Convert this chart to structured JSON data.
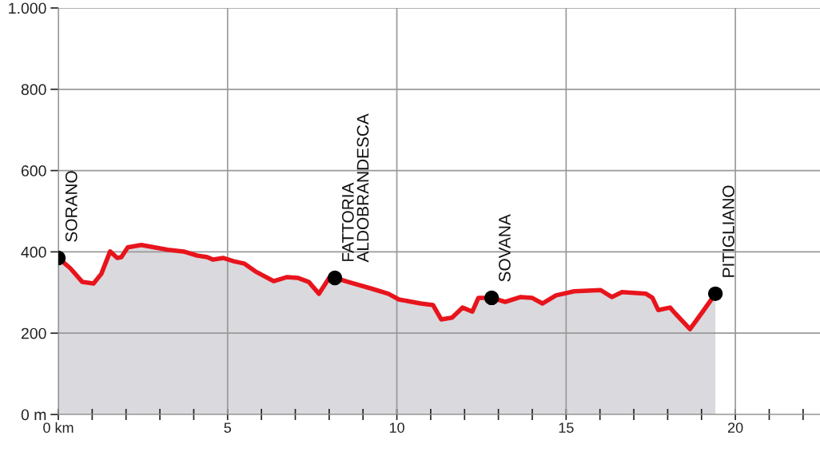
{
  "chart_data": {
    "type": "area",
    "series": [
      {
        "color": "#e8141c",
        "x": [
          0,
          0.35,
          0.71,
          1.04,
          1.27,
          1.53,
          1.74,
          1.86,
          2.05,
          2.45,
          3.23,
          3.7,
          4.1,
          4.4,
          4.57,
          4.88,
          5.18,
          5.5,
          5.82,
          6.36,
          6.76,
          7.07,
          7.4,
          7.7,
          8.0,
          8.17,
          8.57,
          9.28,
          9.75,
          10.06,
          10.7,
          11.07,
          11.31,
          11.63,
          11.94,
          12.23,
          12.41,
          12.8,
          13.2,
          13.66,
          13.99,
          14.3,
          14.7,
          15.24,
          16.02,
          16.35,
          16.65,
          17.36,
          17.55,
          17.72,
          18.07,
          18.23,
          18.66,
          19.01,
          19.41
        ],
        "values": [
          385,
          360,
          326,
          322,
          346,
          401,
          385,
          387,
          411,
          417,
          405,
          401,
          391,
          387,
          381,
          385,
          377,
          371,
          352,
          328,
          338,
          336,
          326,
          297,
          336,
          336,
          326,
          309,
          297,
          283,
          273,
          269,
          234,
          238,
          263,
          253,
          287,
          287,
          277,
          289,
          287,
          273,
          293,
          303,
          306,
          289,
          301,
          297,
          287,
          257,
          263,
          248,
          210,
          250,
          297
        ]
      },
      {
        "type": "scatter",
        "marker": "circle",
        "color": "#000000",
        "x": [
          0,
          8.17,
          12.8,
          19.41
        ],
        "values": [
          385,
          336,
          287,
          297
        ]
      }
    ],
    "annotations": [
      {
        "text": "SORANO",
        "x": 0,
        "y": 385
      },
      {
        "text": "FATTORIA\nALDOBRANDESCA",
        "x": 8.17,
        "y": 336
      },
      {
        "text": "SOVANA",
        "x": 12.8,
        "y": 287
      },
      {
        "text": "PITIGLIANO",
        "x": 19.41,
        "y": 297
      }
    ],
    "xlim": [
      0,
      22.5
    ],
    "ylim": [
      0,
      1000
    ],
    "xticks": [
      {
        "value": 0,
        "label": "0 km"
      },
      {
        "value": 1,
        "label": null
      },
      {
        "value": 2,
        "label": null
      },
      {
        "value": 3,
        "label": null
      },
      {
        "value": 4,
        "label": null
      },
      5,
      {
        "value": 6,
        "label": null
      },
      {
        "value": 7,
        "label": null
      },
      {
        "value": 8,
        "label": null
      },
      {
        "value": 9,
        "label": null
      },
      10,
      {
        "value": 11,
        "label": null
      },
      {
        "value": 12,
        "label": null
      },
      {
        "value": 13,
        "label": null
      },
      {
        "value": 14,
        "label": null
      },
      15,
      {
        "value": 16,
        "label": null
      },
      {
        "value": 17,
        "label": null
      },
      {
        "value": 18,
        "label": null
      },
      {
        "value": 19,
        "label": null
      },
      20,
      {
        "value": 21,
        "label": null
      },
      {
        "value": 22,
        "label": null
      }
    ],
    "yticks": [
      {
        "value": 0,
        "label": "0 m"
      },
      200,
      400,
      600,
      800,
      {
        "value": 1000,
        "label": "1.000"
      }
    ],
    "grid": true,
    "line_style": "solid"
  }
}
